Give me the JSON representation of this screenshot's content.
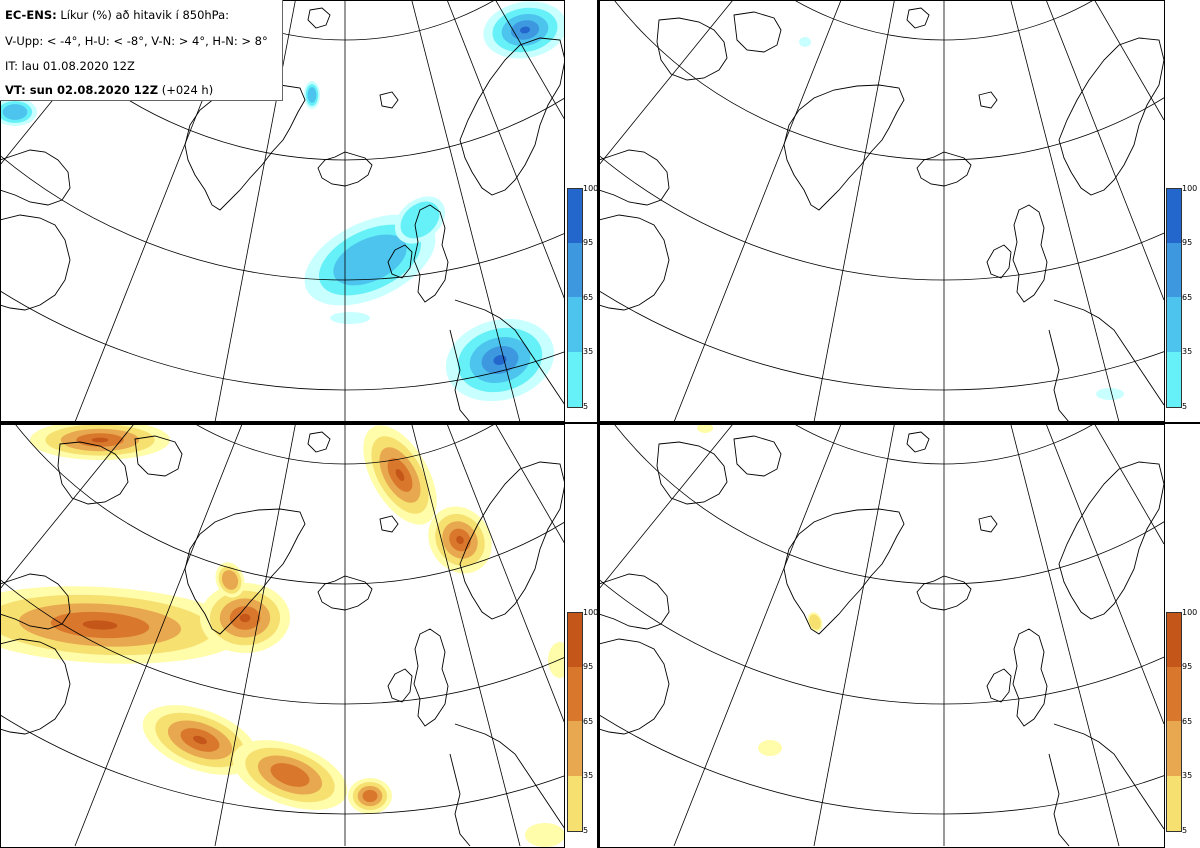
{
  "header": {
    "product": "EC-ENS:",
    "title_rest": "Líkur (%) að hitavik í 850hPa:",
    "legend_line": "V-Upp: < -4°, H-U: < -8°, V-N: > 4°, H-N: > 8°",
    "issue_time": "IT: lau 01.08.2020 12Z",
    "valid_label": "VT: sun 02.08.2020 12Z",
    "valid_offset": "(+024 h)"
  },
  "colorbar_labels": [
    "100",
    "95",
    "65",
    "35",
    "5"
  ],
  "colors": {
    "cold": [
      "#c8ffff",
      "#66f0f8",
      "#4cc4ee",
      "#3d98e0",
      "#2366cc"
    ],
    "warm": [
      "#fffcaa",
      "#f6e070",
      "#e8a850",
      "#d9782c",
      "#c4561a"
    ],
    "coast": "#000000",
    "grid": "#000000"
  },
  "panels": [
    {
      "id": "cold-4",
      "scheme": "cold"
    },
    {
      "id": "cold-8",
      "scheme": "cold"
    },
    {
      "id": "warm-4",
      "scheme": "warm"
    },
    {
      "id": "warm-8",
      "scheme": "warm"
    }
  ]
}
